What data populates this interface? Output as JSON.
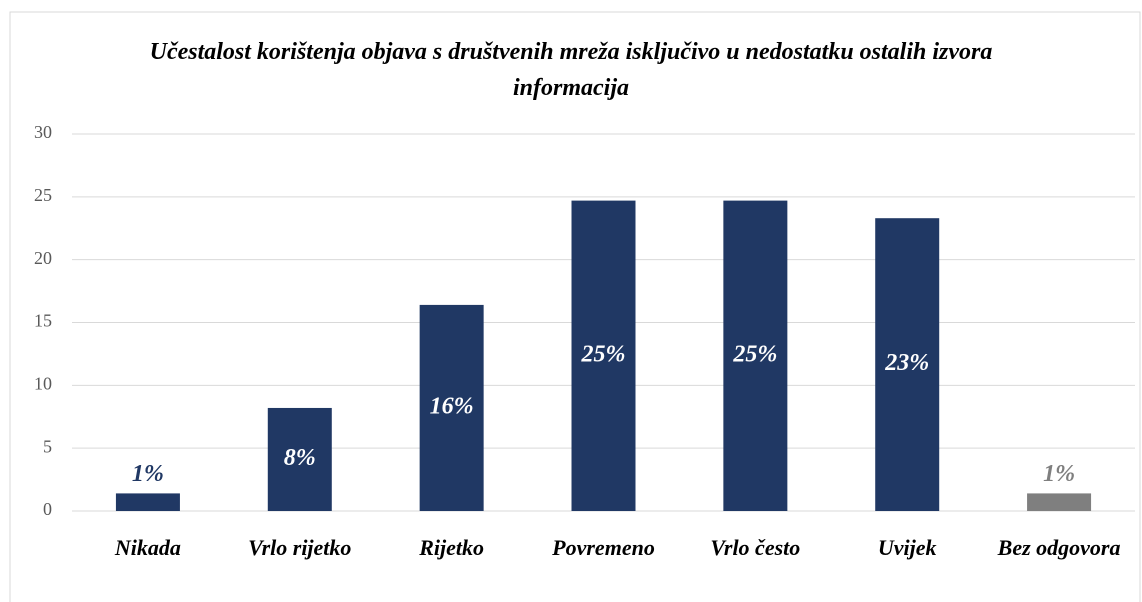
{
  "chart_data": {
    "type": "bar",
    "title": "Učestalost korištenja objava s društvenih mreža isključivo u nedostatku ostalih izvora informacija",
    "categories": [
      "Nikada",
      "Vrlo rijetko",
      "Rijetko",
      "Povremeno",
      "Vrlo često",
      "Uvijek",
      "Bez odgovora"
    ],
    "values": [
      1.4,
      8.2,
      16.4,
      24.7,
      24.7,
      23.3,
      1.4
    ],
    "value_labels": [
      "1%",
      "8%",
      "16%",
      "25%",
      "25%",
      "23%",
      "1%"
    ],
    "colors": [
      "#203864",
      "#203864",
      "#203864",
      "#203864",
      "#203864",
      "#203864",
      "#7f7f7f"
    ],
    "ylim": [
      0,
      30
    ],
    "yticks": [
      0,
      5,
      10,
      15,
      20,
      25,
      30
    ],
    "grid": true
  }
}
